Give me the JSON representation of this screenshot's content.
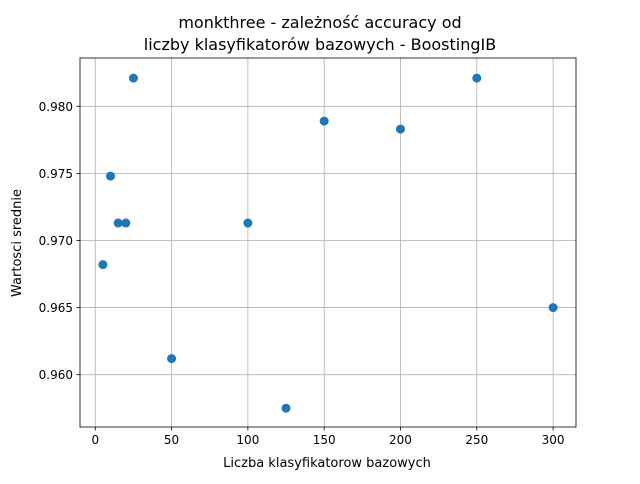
{
  "chart_data": {
    "type": "scatter",
    "title_line1": "monkthree - zależność accuracy od",
    "title_line2": "liczby klasyfikatorów bazowych - BoostingIB",
    "xlabel": "Liczba klasyfikatorow bazowych",
    "ylabel": "Wartosci srednie",
    "xlim": [
      -10,
      315
    ],
    "ylim": [
      0.9561,
      0.9836
    ],
    "xticks": [
      0,
      50,
      100,
      150,
      200,
      250,
      300
    ],
    "xtick_labels": [
      "0",
      "50",
      "100",
      "150",
      "200",
      "250",
      "300"
    ],
    "yticks": [
      0.96,
      0.965,
      0.97,
      0.975,
      0.98
    ],
    "ytick_labels": [
      "0.960",
      "0.965",
      "0.970",
      "0.975",
      "0.980"
    ],
    "grid": true,
    "marker_color": "#1f77b4",
    "points": [
      {
        "x": 5,
        "y": 0.9682
      },
      {
        "x": 10,
        "y": 0.9748
      },
      {
        "x": 15,
        "y": 0.9713
      },
      {
        "x": 20,
        "y": 0.9713
      },
      {
        "x": 25,
        "y": 0.9821
      },
      {
        "x": 50,
        "y": 0.9612
      },
      {
        "x": 100,
        "y": 0.9713
      },
      {
        "x": 125,
        "y": 0.9575
      },
      {
        "x": 150,
        "y": 0.9789
      },
      {
        "x": 200,
        "y": 0.9783
      },
      {
        "x": 250,
        "y": 0.9821
      },
      {
        "x": 300,
        "y": 0.965
      }
    ]
  }
}
